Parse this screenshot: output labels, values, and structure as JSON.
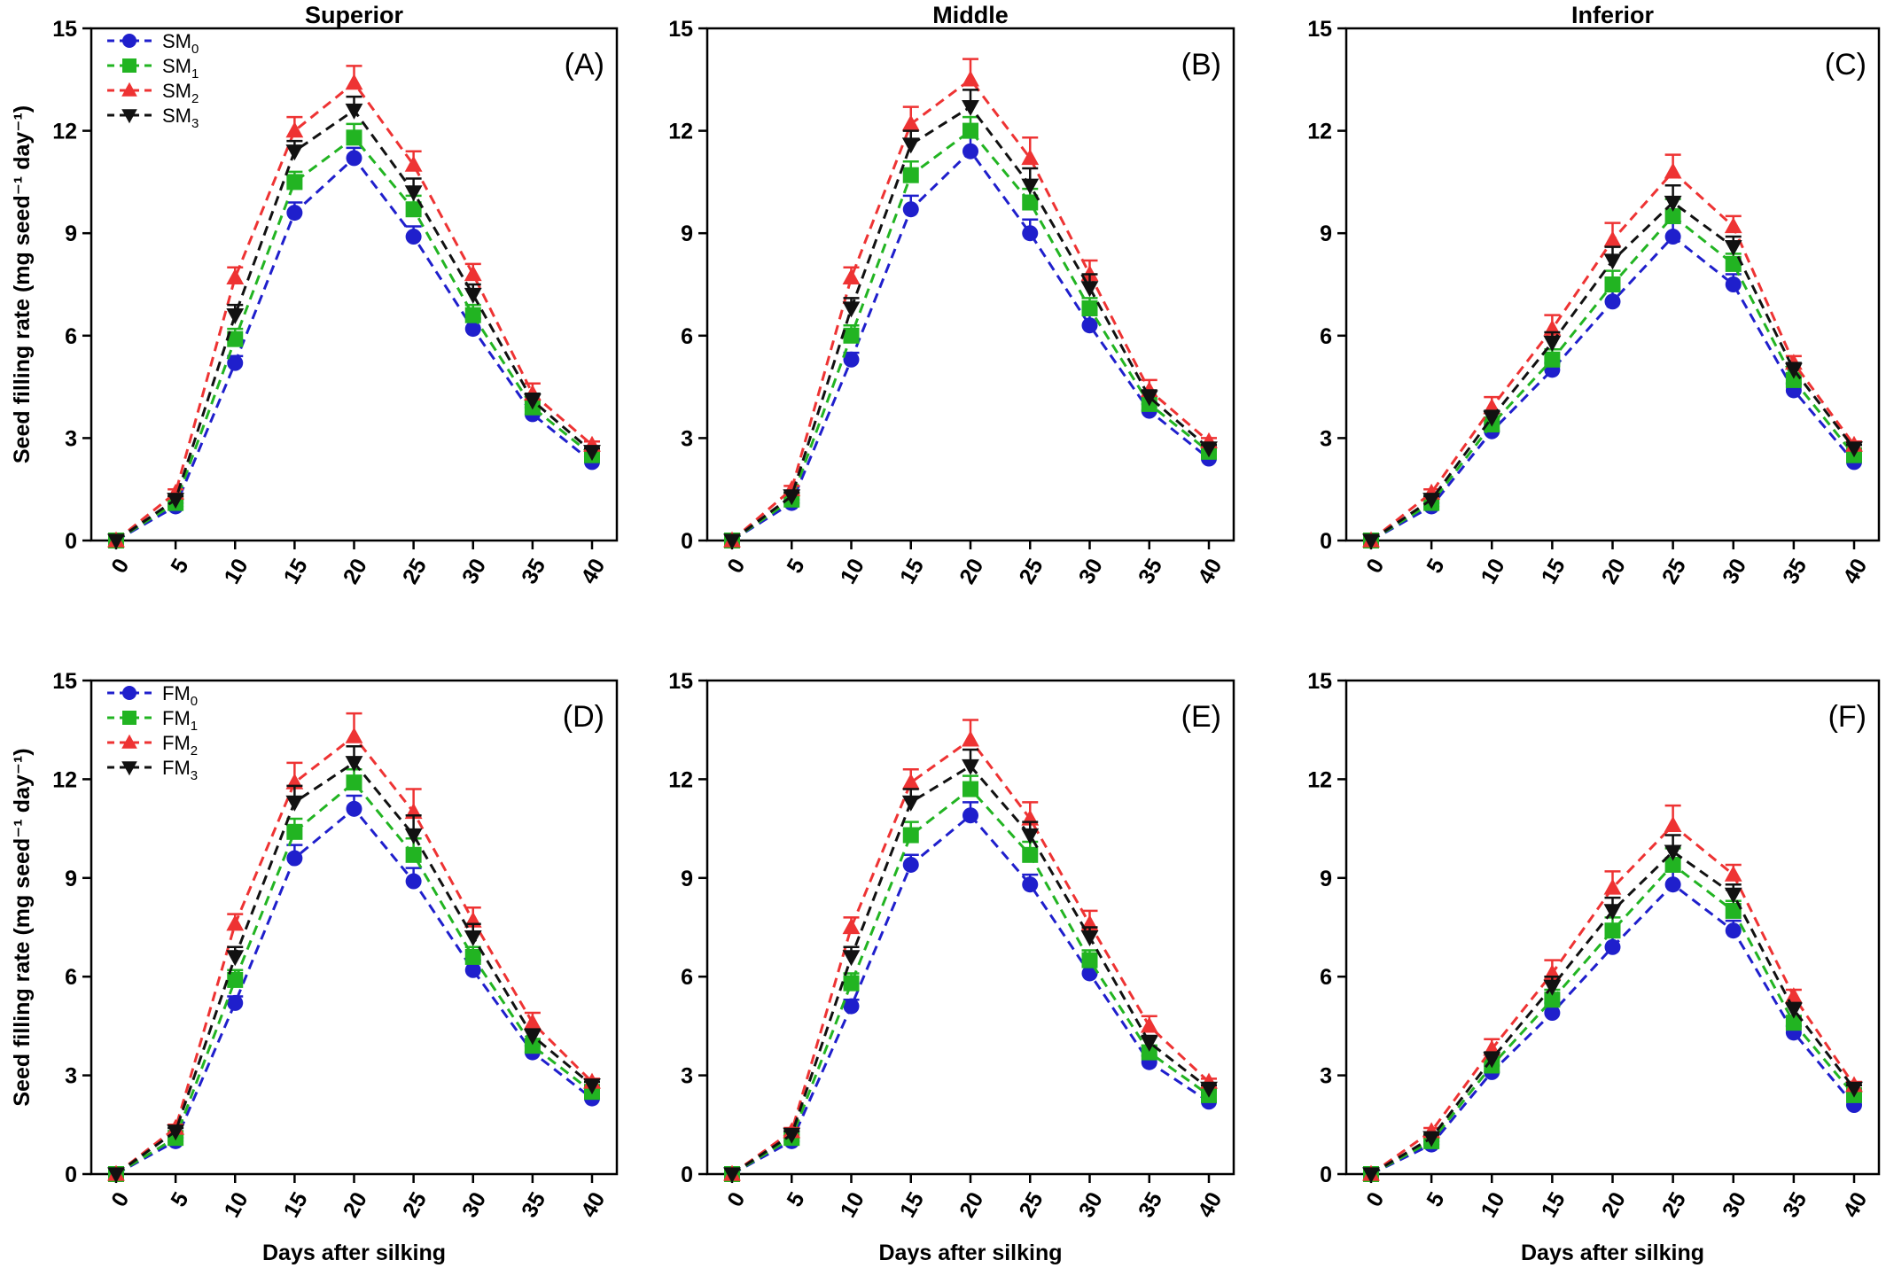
{
  "chart_data": [
    {
      "type": "line",
      "tag": "(A)",
      "title": "Superior",
      "ylabel": "Seed filling rate (mg seed⁻¹ day⁻¹)",
      "xlabel": "",
      "x": [
        0,
        5,
        10,
        15,
        20,
        25,
        30,
        35,
        40
      ],
      "xlim": [
        0,
        40
      ],
      "ylim": [
        0,
        15
      ],
      "yticks": [
        0,
        3,
        6,
        9,
        12,
        15
      ],
      "xticks": [
        0,
        5,
        10,
        15,
        20,
        25,
        30,
        35,
        40
      ],
      "legend": "top-left",
      "series": [
        {
          "name": "SM",
          "sub": "0",
          "color": "#1f1fcc",
          "marker": "circle",
          "values": [
            0,
            1.0,
            5.2,
            9.6,
            11.2,
            8.9,
            6.2,
            3.7,
            2.3
          ],
          "err": [
            0,
            0.1,
            0.2,
            0.3,
            0.3,
            0.3,
            0.3,
            0.2,
            0.1
          ]
        },
        {
          "name": "SM",
          "sub": "1",
          "color": "#22b422",
          "marker": "square",
          "values": [
            0,
            1.1,
            5.9,
            10.5,
            11.8,
            9.7,
            6.6,
            3.9,
            2.5
          ],
          "err": [
            0,
            0.1,
            0.3,
            0.3,
            0.4,
            0.4,
            0.3,
            0.2,
            0.1
          ]
        },
        {
          "name": "SM",
          "sub": "2",
          "color": "#ee3333",
          "marker": "triangle-up",
          "values": [
            0,
            1.4,
            7.7,
            12.0,
            13.4,
            11.0,
            7.8,
            4.3,
            2.8
          ],
          "err": [
            0,
            0.1,
            0.3,
            0.4,
            0.5,
            0.4,
            0.3,
            0.3,
            0.1
          ]
        },
        {
          "name": "SM",
          "sub": "3",
          "color": "#111111",
          "marker": "triangle-down",
          "values": [
            0,
            1.2,
            6.6,
            11.4,
            12.6,
            10.2,
            7.2,
            4.1,
            2.6
          ],
          "err": [
            0,
            0.1,
            0.3,
            0.3,
            0.4,
            0.4,
            0.3,
            0.2,
            0.1
          ]
        }
      ]
    },
    {
      "type": "line",
      "tag": "(B)",
      "title": "Middle",
      "ylabel": "",
      "xlabel": "",
      "x": [
        0,
        5,
        10,
        15,
        20,
        25,
        30,
        35,
        40
      ],
      "xlim": [
        0,
        40
      ],
      "ylim": [
        0,
        15
      ],
      "yticks": [
        0,
        3,
        6,
        9,
        12,
        15
      ],
      "xticks": [
        0,
        5,
        10,
        15,
        20,
        25,
        30,
        35,
        40
      ],
      "legend": "none",
      "series": [
        {
          "name": "SM",
          "sub": "0",
          "color": "#1f1fcc",
          "marker": "circle",
          "values": [
            0,
            1.1,
            5.3,
            9.7,
            11.4,
            9.0,
            6.3,
            3.8,
            2.4
          ],
          "err": [
            0,
            0.1,
            0.2,
            0.4,
            0.4,
            0.4,
            0.3,
            0.2,
            0.1
          ]
        },
        {
          "name": "SM",
          "sub": "1",
          "color": "#22b422",
          "marker": "square",
          "values": [
            0,
            1.2,
            6.0,
            10.7,
            12.0,
            9.9,
            6.8,
            4.0,
            2.6
          ],
          "err": [
            0,
            0.1,
            0.3,
            0.4,
            0.4,
            0.4,
            0.3,
            0.2,
            0.1
          ]
        },
        {
          "name": "SM",
          "sub": "2",
          "color": "#ee3333",
          "marker": "triangle-up",
          "values": [
            0,
            1.5,
            7.7,
            12.2,
            13.5,
            11.2,
            7.8,
            4.4,
            2.9
          ],
          "err": [
            0,
            0.1,
            0.3,
            0.5,
            0.6,
            0.6,
            0.4,
            0.3,
            0.1
          ]
        },
        {
          "name": "SM",
          "sub": "3",
          "color": "#111111",
          "marker": "triangle-down",
          "values": [
            0,
            1.3,
            6.8,
            11.6,
            12.7,
            10.4,
            7.4,
            4.2,
            2.7
          ],
          "err": [
            0,
            0.1,
            0.3,
            0.4,
            0.5,
            0.5,
            0.4,
            0.2,
            0.1
          ]
        }
      ]
    },
    {
      "type": "line",
      "tag": "(C)",
      "title": "Inferior",
      "ylabel": "",
      "xlabel": "",
      "x": [
        0,
        5,
        10,
        15,
        20,
        25,
        30,
        35,
        40
      ],
      "xlim": [
        0,
        40
      ],
      "ylim": [
        0,
        15
      ],
      "yticks": [
        0,
        3,
        6,
        9,
        12,
        15
      ],
      "xticks": [
        0,
        5,
        10,
        15,
        20,
        25,
        30,
        35,
        40
      ],
      "legend": "none",
      "series": [
        {
          "name": "SM",
          "sub": "0",
          "color": "#1f1fcc",
          "marker": "circle",
          "values": [
            0,
            1.0,
            3.2,
            5.0,
            7.0,
            8.9,
            7.5,
            4.4,
            2.3
          ],
          "err": [
            0,
            0.1,
            0.2,
            0.2,
            0.3,
            0.4,
            0.3,
            0.2,
            0.1
          ]
        },
        {
          "name": "SM",
          "sub": "1",
          "color": "#22b422",
          "marker": "square",
          "values": [
            0,
            1.1,
            3.4,
            5.3,
            7.5,
            9.5,
            8.1,
            4.7,
            2.5
          ],
          "err": [
            0,
            0.1,
            0.2,
            0.3,
            0.4,
            0.5,
            0.3,
            0.2,
            0.1
          ]
        },
        {
          "name": "SM",
          "sub": "2",
          "color": "#ee3333",
          "marker": "triangle-up",
          "values": [
            0,
            1.4,
            3.9,
            6.2,
            8.8,
            10.8,
            9.2,
            5.2,
            2.8
          ],
          "err": [
            0,
            0.1,
            0.3,
            0.4,
            0.5,
            0.5,
            0.3,
            0.2,
            0.1
          ]
        },
        {
          "name": "SM",
          "sub": "3",
          "color": "#111111",
          "marker": "triangle-down",
          "values": [
            0,
            1.2,
            3.6,
            5.8,
            8.2,
            9.9,
            8.6,
            5.0,
            2.7
          ],
          "err": [
            0,
            0.1,
            0.2,
            0.3,
            0.4,
            0.5,
            0.3,
            0.2,
            0.1
          ]
        }
      ]
    },
    {
      "type": "line",
      "tag": "(D)",
      "title": "",
      "ylabel": "Seed filling rate (mg seed⁻¹ day⁻¹)",
      "xlabel": "Days after silking",
      "x": [
        0,
        5,
        10,
        15,
        20,
        25,
        30,
        35,
        40
      ],
      "xlim": [
        0,
        40
      ],
      "ylim": [
        0,
        15
      ],
      "yticks": [
        0,
        3,
        6,
        9,
        12,
        15
      ],
      "xticks": [
        0,
        5,
        10,
        15,
        20,
        25,
        30,
        35,
        40
      ],
      "legend": "top-left",
      "series": [
        {
          "name": "FM",
          "sub": "0",
          "color": "#1f1fcc",
          "marker": "circle",
          "values": [
            0,
            1.0,
            5.2,
            9.6,
            11.1,
            8.9,
            6.2,
            3.7,
            2.3
          ],
          "err": [
            0,
            0.1,
            0.2,
            0.4,
            0.4,
            0.4,
            0.3,
            0.2,
            0.1
          ]
        },
        {
          "name": "FM",
          "sub": "1",
          "color": "#22b422",
          "marker": "square",
          "values": [
            0,
            1.1,
            5.9,
            10.4,
            11.9,
            9.7,
            6.6,
            3.9,
            2.5
          ],
          "err": [
            0,
            0.1,
            0.3,
            0.4,
            0.4,
            0.5,
            0.3,
            0.2,
            0.1
          ]
        },
        {
          "name": "FM",
          "sub": "2",
          "color": "#ee3333",
          "marker": "triangle-up",
          "values": [
            0,
            1.4,
            7.6,
            11.9,
            13.3,
            11.0,
            7.7,
            4.6,
            2.8
          ],
          "err": [
            0,
            0.1,
            0.3,
            0.6,
            0.7,
            0.7,
            0.4,
            0.3,
            0.1
          ]
        },
        {
          "name": "FM",
          "sub": "3",
          "color": "#111111",
          "marker": "triangle-down",
          "values": [
            0,
            1.3,
            6.6,
            11.3,
            12.5,
            10.3,
            7.2,
            4.2,
            2.7
          ],
          "err": [
            0,
            0.1,
            0.3,
            0.5,
            0.5,
            0.6,
            0.4,
            0.2,
            0.1
          ]
        }
      ]
    },
    {
      "type": "line",
      "tag": "(E)",
      "title": "",
      "ylabel": "",
      "xlabel": "Days after silking",
      "x": [
        0,
        5,
        10,
        15,
        20,
        25,
        30,
        35,
        40
      ],
      "xlim": [
        0,
        40
      ],
      "ylim": [
        0,
        15
      ],
      "yticks": [
        0,
        3,
        6,
        9,
        12,
        15
      ],
      "xticks": [
        0,
        5,
        10,
        15,
        20,
        25,
        30,
        35,
        40
      ],
      "legend": "none",
      "series": [
        {
          "name": "FM",
          "sub": "0",
          "color": "#1f1fcc",
          "marker": "circle",
          "values": [
            0,
            1.0,
            5.1,
            9.4,
            10.9,
            8.8,
            6.1,
            3.4,
            2.2
          ],
          "err": [
            0,
            0.1,
            0.2,
            0.3,
            0.4,
            0.3,
            0.3,
            0.2,
            0.1
          ]
        },
        {
          "name": "FM",
          "sub": "1",
          "color": "#22b422",
          "marker": "square",
          "values": [
            0,
            1.1,
            5.8,
            10.3,
            11.7,
            9.7,
            6.5,
            3.7,
            2.4
          ],
          "err": [
            0,
            0.1,
            0.3,
            0.4,
            0.4,
            0.4,
            0.3,
            0.2,
            0.1
          ]
        },
        {
          "name": "FM",
          "sub": "2",
          "color": "#ee3333",
          "marker": "triangle-up",
          "values": [
            0,
            1.3,
            7.5,
            11.9,
            13.2,
            10.8,
            7.6,
            4.5,
            2.8
          ],
          "err": [
            0,
            0.1,
            0.3,
            0.4,
            0.6,
            0.5,
            0.4,
            0.3,
            0.1
          ]
        },
        {
          "name": "FM",
          "sub": "3",
          "color": "#111111",
          "marker": "triangle-down",
          "values": [
            0,
            1.2,
            6.6,
            11.3,
            12.4,
            10.3,
            7.2,
            4.0,
            2.6
          ],
          "err": [
            0,
            0.1,
            0.3,
            0.4,
            0.5,
            0.4,
            0.3,
            0.2,
            0.1
          ]
        }
      ]
    },
    {
      "type": "line",
      "tag": "(F)",
      "title": "",
      "ylabel": "",
      "xlabel": "Days after silking",
      "x": [
        0,
        5,
        10,
        15,
        20,
        25,
        30,
        35,
        40
      ],
      "xlim": [
        0,
        40
      ],
      "ylim": [
        0,
        15
      ],
      "yticks": [
        0,
        3,
        6,
        9,
        12,
        15
      ],
      "xticks": [
        0,
        5,
        10,
        15,
        20,
        25,
        30,
        35,
        40
      ],
      "legend": "none",
      "series": [
        {
          "name": "FM",
          "sub": "0",
          "color": "#1f1fcc",
          "marker": "circle",
          "values": [
            0,
            0.9,
            3.1,
            4.9,
            6.9,
            8.8,
            7.4,
            4.3,
            2.1
          ],
          "err": [
            0,
            0.1,
            0.2,
            0.3,
            0.4,
            0.4,
            0.3,
            0.2,
            0.1
          ]
        },
        {
          "name": "FM",
          "sub": "1",
          "color": "#22b422",
          "marker": "square",
          "values": [
            0,
            1.0,
            3.3,
            5.3,
            7.4,
            9.4,
            8.0,
            4.6,
            2.4
          ],
          "err": [
            0,
            0.1,
            0.2,
            0.3,
            0.4,
            0.5,
            0.3,
            0.2,
            0.1
          ]
        },
        {
          "name": "FM",
          "sub": "2",
          "color": "#ee3333",
          "marker": "triangle-up",
          "values": [
            0,
            1.3,
            3.8,
            6.1,
            8.7,
            10.6,
            9.1,
            5.4,
            2.7
          ],
          "err": [
            0,
            0.1,
            0.3,
            0.4,
            0.5,
            0.6,
            0.3,
            0.2,
            0.1
          ]
        },
        {
          "name": "FM",
          "sub": "3",
          "color": "#111111",
          "marker": "triangle-down",
          "values": [
            0,
            1.1,
            3.5,
            5.7,
            8.0,
            9.8,
            8.5,
            5.0,
            2.6
          ],
          "err": [
            0,
            0.1,
            0.2,
            0.3,
            0.4,
            0.5,
            0.3,
            0.2,
            0.1
          ]
        }
      ]
    }
  ]
}
